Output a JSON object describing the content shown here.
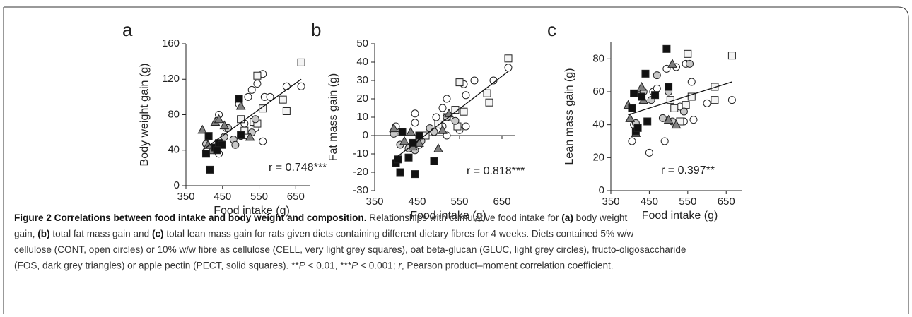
{
  "chart_data": [
    {
      "type": "scatter",
      "letter": "a",
      "x_label": "Food intake (g)",
      "y_label": "Body weight gain (g)",
      "annotation": "r = 0.748***",
      "xlim": [
        350,
        690
      ],
      "xticks": [
        350,
        450,
        550,
        650
      ],
      "ylim": [
        0,
        160
      ],
      "yticks": [
        0,
        40,
        80,
        120,
        160
      ],
      "series": [
        {
          "marker": "circle",
          "color": "#ffffff",
          "x": [
            440,
            460,
            495,
            520,
            530,
            545,
            560,
            565,
            580,
            625,
            665,
            510,
            540,
            560,
            440
          ],
          "values": [
            80,
            65,
            92,
            100,
            108,
            115,
            126,
            100,
            100,
            112,
            112,
            70,
            65,
            50,
            36
          ]
        },
        {
          "marker": "square",
          "color": "#f4f4f4",
          "x": [
            500,
            535,
            545,
            560,
            615,
            625,
            665,
            520,
            545,
            510
          ],
          "values": [
            75,
            72,
            124,
            87,
            97,
            84,
            139,
            57,
            70,
            62
          ]
        },
        {
          "marker": "circle",
          "color": "#c8c8c8",
          "x": [
            405,
            430,
            455,
            465,
            480,
            500,
            530,
            540,
            485
          ],
          "values": [
            47,
            42,
            55,
            65,
            52,
            56,
            60,
            75,
            46
          ]
        },
        {
          "marker": "triangle",
          "color": "#808080",
          "x": [
            395,
            410,
            430,
            440,
            455,
            500,
            420,
            525
          ],
          "values": [
            63,
            46,
            72,
            75,
            68,
            90,
            40,
            55
          ]
        },
        {
          "marker": "square",
          "color": "#111111",
          "x": [
            405,
            412,
            415,
            430,
            440,
            448,
            495,
            500,
            435
          ],
          "values": [
            36,
            56,
            18,
            43,
            48,
            46,
            98,
            57,
            40
          ]
        }
      ],
      "trend": {
        "x": [
          395,
          665
        ],
        "values": [
          40,
          120
        ]
      }
    },
    {
      "type": "scatter",
      "letter": "b",
      "x_label": "Food intake (g)",
      "y_label": "Fat mass gain (g)",
      "annotation": "r = 0.818***",
      "xlim": [
        350,
        680
      ],
      "xticks": [
        350,
        450,
        550,
        650
      ],
      "ylim": [
        -30,
        50
      ],
      "yticks": [
        -30,
        -20,
        -10,
        0,
        10,
        20,
        30,
        40,
        50
      ],
      "series": [
        {
          "marker": "circle",
          "color": "#ffffff",
          "x": [
            445,
            445,
            495,
            510,
            520,
            560,
            565,
            585,
            630,
            665,
            510,
            520,
            550,
            565,
            455,
            400
          ],
          "values": [
            7,
            12,
            10,
            15,
            20,
            28,
            22,
            30,
            30,
            37,
            5,
            0,
            3,
            5,
            -5,
            5
          ]
        },
        {
          "marker": "square",
          "color": "#f4f4f4",
          "x": [
            500,
            520,
            540,
            550,
            560,
            615,
            620,
            665,
            545,
            470
          ],
          "values": [
            6,
            10,
            14,
            29,
            13,
            23,
            18,
            42,
            5,
            0
          ]
        },
        {
          "marker": "circle",
          "color": "#c8c8c8",
          "x": [
            410,
            430,
            445,
            460,
            480,
            490,
            520,
            540,
            395
          ],
          "values": [
            -5,
            -7,
            -8,
            -3,
            4,
            2,
            10,
            8,
            1
          ]
        },
        {
          "marker": "triangle",
          "color": "#808080",
          "x": [
            395,
            420,
            435,
            440,
            455,
            500,
            510,
            525
          ],
          "values": [
            4,
            -3,
            2,
            -6,
            -4,
            -7,
            3,
            12
          ]
        },
        {
          "marker": "square",
          "color": "#111111",
          "x": [
            400,
            405,
            410,
            415,
            430,
            445,
            455,
            490,
            440
          ],
          "values": [
            -15,
            -13,
            -20,
            2,
            -12,
            -21,
            0,
            -14,
            -4
          ]
        }
      ],
      "trend": {
        "x": [
          395,
          665
        ],
        "values": [
          -13,
          35
        ]
      }
    },
    {
      "type": "scatter",
      "letter": "c",
      "x_label": "Food intake (g)",
      "y_label": "Lean mass gain (g)",
      "annotation": "r = 0.397**",
      "xlim": [
        350,
        690
      ],
      "xticks": [
        350,
        450,
        550,
        650
      ],
      "ylim": [
        0,
        90
      ],
      "yticks": [
        0,
        20,
        40,
        60,
        80
      ],
      "series": [
        {
          "marker": "circle",
          "color": "#ffffff",
          "x": [
            405,
            450,
            460,
            490,
            495,
            520,
            530,
            545,
            560,
            565,
            600,
            665,
            540,
            470,
            410
          ],
          "values": [
            30,
            23,
            60,
            30,
            74,
            75,
            51,
            77,
            66,
            43,
            53,
            55,
            42,
            62,
            40
          ]
        },
        {
          "marker": "square",
          "color": "#f4f4f4",
          "x": [
            430,
            505,
            515,
            530,
            545,
            550,
            560,
            620,
            620,
            665
          ],
          "values": [
            58,
            55,
            50,
            42,
            52,
            83,
            57,
            63,
            55,
            82
          ]
        },
        {
          "marker": "circle",
          "color": "#c8c8c8",
          "x": [
            415,
            435,
            455,
            470,
            500,
            510,
            540,
            555,
            485
          ],
          "values": [
            41,
            60,
            55,
            70,
            60,
            42,
            48,
            77,
            44
          ]
        },
        {
          "marker": "triangle",
          "color": "#808080",
          "x": [
            395,
            400,
            415,
            430,
            500,
            510,
            520,
            435
          ],
          "values": [
            52,
            44,
            35,
            63,
            43,
            77,
            40,
            55
          ]
        },
        {
          "marker": "square",
          "color": "#111111",
          "x": [
            405,
            410,
            415,
            420,
            430,
            440,
            445,
            465,
            495,
            500
          ],
          "values": [
            50,
            59,
            36,
            38,
            57,
            71,
            42,
            58,
            86,
            63
          ]
        }
      ],
      "trend": {
        "x": [
          395,
          665
        ],
        "values": [
          46,
          66
        ]
      }
    }
  ],
  "caption": [
    [
      {
        "text": "Figure 2 Correlations between food intake and body weight and composition.",
        "style": "bold"
      },
      {
        "text": " Relationships with cumulative food intake for ",
        "style": "normal"
      },
      {
        "text": "(a)",
        "style": "bold"
      },
      {
        "text": " body weight",
        "style": "normal"
      }
    ],
    [
      {
        "text": "gain, ",
        "style": "normal"
      },
      {
        "text": "(b)",
        "style": "bold"
      },
      {
        "text": " total fat mass gain and ",
        "style": "normal"
      },
      {
        "text": "(c)",
        "style": "bold"
      },
      {
        "text": " total lean mass gain for rats given diets containing different dietary fibres for 4 weeks. Diets contained 5% w/w",
        "style": "normal"
      }
    ],
    [
      {
        "text": "cellulose (CONT, open circles) or 10% w/w fibre as cellulose (CELL, very light grey squares), oat beta-glucan (GLUC, light grey circles), fructo-oligosaccharide",
        "style": "normal"
      }
    ],
    [
      {
        "text": "(FOS, dark grey triangles) or apple pectin (PECT, solid squares). **",
        "style": "normal"
      },
      {
        "text": "P",
        "style": "italic"
      },
      {
        "text": " < 0.01, ***",
        "style": "normal"
      },
      {
        "text": "P",
        "style": "italic"
      },
      {
        "text": " < 0.001; ",
        "style": "normal"
      },
      {
        "text": "r",
        "style": "italic"
      },
      {
        "text": ", Pearson product–moment correlation coefficient.",
        "style": "normal"
      }
    ]
  ]
}
